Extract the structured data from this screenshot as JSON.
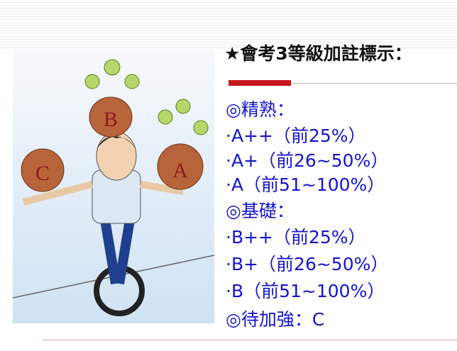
{
  "title": "★會考3等級加註標示：",
  "lines": [
    "◎精熟：",
    "·A++（前25%）",
    "·A+（前26~50%）",
    "·A（前51~100%）",
    "◎基礎：",
    "·B++（前25%）",
    "·B+（前26~50%）",
    "·B（前51~100%）",
    "◎待加強：C"
  ]
}
